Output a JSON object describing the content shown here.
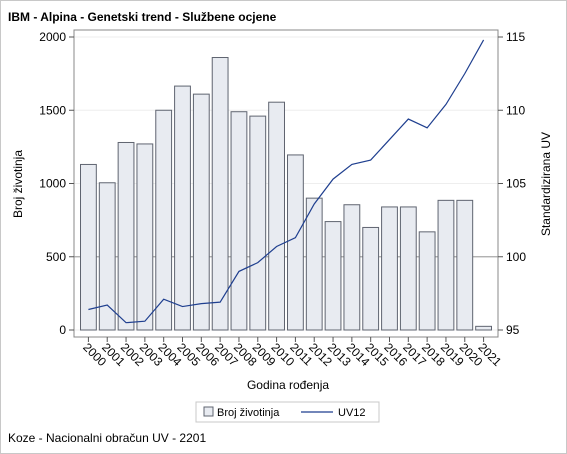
{
  "title": "IBM - Alpina - Genetski trend - Službene ocjene",
  "footnote": "Koze - Nacionalni obračun UV - 2201",
  "chart_data": {
    "type": "bar",
    "title": "IBM - Alpina - Genetski trend - Službene ocjene",
    "xlabel": "Godina rođenja",
    "ylabel": "Broj životinja",
    "y2label": "Standardizirana UV",
    "ylim": [
      0,
      2000
    ],
    "y2lim": [
      95,
      115
    ],
    "yticks": [
      "0",
      "500",
      "1000",
      "1500",
      "2000"
    ],
    "y2ticks": [
      "95",
      "100",
      "105",
      "110",
      "115"
    ],
    "grid": true,
    "legend_position": "bottom",
    "categories": [
      "2000",
      "2001",
      "2002",
      "2003",
      "2004",
      "2005",
      "2006",
      "2007",
      "2008",
      "2009",
      "2010",
      "2011",
      "2012",
      "2013",
      "2014",
      "2015",
      "2016",
      "2017",
      "2018",
      "2019",
      "2020",
      "2021"
    ],
    "series": [
      {
        "name": "Broj životinja",
        "type": "bar",
        "axis": "left",
        "color": "#e8ebf1",
        "stroke": "#5f6470",
        "values": [
          1130,
          1005,
          1280,
          1270,
          1500,
          1665,
          1610,
          1860,
          1490,
          1460,
          1555,
          1195,
          900,
          740,
          855,
          700,
          840,
          840,
          670,
          885,
          885,
          25
        ]
      },
      {
        "name": "UV12",
        "type": "line",
        "axis": "right",
        "color": "#1f3f8f",
        "values": [
          96.4,
          96.7,
          95.5,
          95.6,
          97.1,
          96.6,
          96.8,
          96.9,
          99.0,
          99.6,
          100.7,
          101.3,
          103.6,
          105.3,
          106.3,
          106.6,
          108.0,
          109.4,
          108.8,
          110.4,
          112.5,
          114.8
        ]
      }
    ],
    "reference_line": {
      "axis": "right",
      "value": 100,
      "color": "#a8a8a8"
    }
  }
}
